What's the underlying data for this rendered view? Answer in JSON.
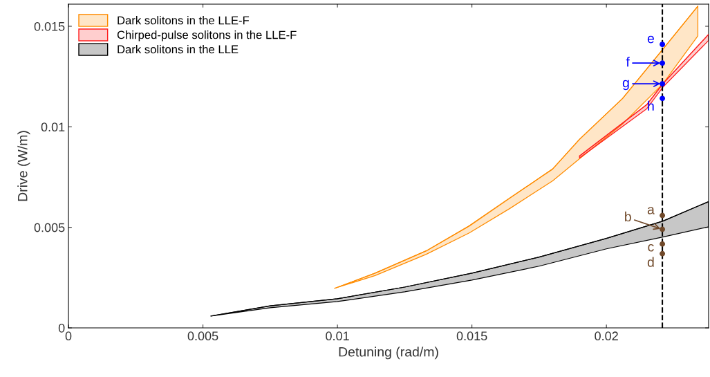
{
  "chart_data": {
    "type": "line",
    "xlabel": "Detuning (rad/m)",
    "ylabel": "Drive (W/m)",
    "xlim": [
      0,
      0.0238
    ],
    "ylim": [
      0,
      0.0161
    ],
    "xticks": [
      0,
      0.005,
      0.01,
      0.015,
      0.02
    ],
    "yticks": [
      0,
      0.005,
      0.01,
      0.015
    ],
    "grid": false,
    "legend": "top left",
    "series": [
      {
        "name": "Dark solitons in the LLE-F",
        "color": "#ff8c00",
        "x": [
          0.0099,
          0.0114,
          0.0133,
          0.0149,
          0.0164,
          0.018,
          0.019,
          0.0206,
          0.0221,
          0.0234
        ],
        "lower": [
          0.00197,
          0.0026,
          0.00366,
          0.00472,
          0.00593,
          0.00731,
          0.00841,
          0.01014,
          0.01214,
          0.01452
        ],
        "values": [
          0.00197,
          0.00272,
          0.00383,
          0.00507,
          0.00645,
          0.0079,
          0.00938,
          0.01141,
          0.01386,
          0.016
        ],
        "upper": [
          0.00197,
          0.00272,
          0.00383,
          0.00507,
          0.00645,
          0.0079,
          0.00938,
          0.01141,
          0.01386,
          0.016
        ]
      },
      {
        "name": "Chirped-pulse solitons in the LLE-F",
        "color": "#ff2020",
        "x": [
          0.019,
          0.0215,
          0.0221,
          0.0238
        ],
        "lower": [
          0.00845,
          0.0109,
          0.01197,
          0.0143
        ],
        "values": [
          0.00855,
          0.0111,
          0.01214,
          0.0146
        ],
        "upper": [
          0.00855,
          0.0111,
          0.01214,
          0.0146
        ]
      },
      {
        "name": "Dark solitons in the LLE",
        "color": "#000000",
        "x": [
          0.0053,
          0.0075,
          0.01,
          0.0125,
          0.015,
          0.0175,
          0.02,
          0.0221,
          0.0238
        ],
        "lower": [
          0.00059,
          0.001,
          0.00131,
          0.00179,
          0.00238,
          0.00307,
          0.00393,
          0.00452,
          0.00503
        ],
        "values": [
          0.00059,
          0.0011,
          0.00145,
          0.00203,
          0.00272,
          0.00352,
          0.00445,
          0.00531,
          0.00628
        ],
        "upper": [
          0.00059,
          0.0011,
          0.00145,
          0.00203,
          0.00272,
          0.00352,
          0.00445,
          0.00531,
          0.00628
        ]
      },
      {
        "type": "scatter",
        "color": "#0000ff",
        "x": [
          0.02208,
          0.02208,
          0.02208,
          0.02208
        ],
        "values": [
          0.0141,
          0.01317,
          0.01214,
          0.01141
        ]
      },
      {
        "type": "scatter",
        "color": "#70492a",
        "x": [
          0.02208,
          0.02208,
          0.02208,
          0.02208
        ],
        "values": [
          0.00559,
          0.0049,
          0.00417,
          0.00369
        ]
      }
    ],
    "ref_lines": [
      {
        "axis": "x",
        "value": 0.02208,
        "color": "#000000",
        "line_style": "dashed"
      }
    ],
    "annotations": [
      "e",
      "f",
      "g",
      "h",
      "a",
      "b",
      "c",
      "d"
    ]
  }
}
